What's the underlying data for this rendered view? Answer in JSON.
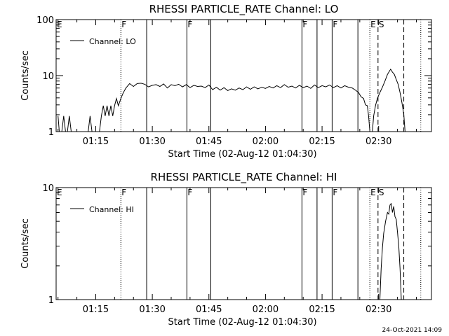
{
  "footer": {
    "date_stamp": "24-Oct-2021 14:09"
  },
  "chart_data": [
    {
      "type": "line",
      "title": "RHESSI PARTICLE_RATE Channel: LO",
      "xlabel": "Start Time (02-Aug-12 01:04:30)",
      "ylabel": "Counts/sec",
      "y_scale": "log",
      "ylim": [
        1,
        100
      ],
      "y_ticks": [
        "1",
        "10",
        "100"
      ],
      "xlim": [
        "01:04:30",
        "02:44:00"
      ],
      "x_ticks": [
        "01:15",
        "01:30",
        "01:45",
        "02:00",
        "02:15",
        "02:30"
      ],
      "grid": false,
      "legend": {
        "placement": "top-left",
        "entries": [
          "Channel: LO"
        ]
      },
      "markers": [
        {
          "label": "E",
          "time": "01:04:30",
          "style": "none"
        },
        {
          "label": "F",
          "time": "01:21:40",
          "style": "dotted"
        },
        {
          "label": "",
          "time": "01:28:30",
          "style": "solid"
        },
        {
          "label": "F",
          "time": "01:39:10",
          "style": "solid"
        },
        {
          "label": "",
          "time": "01:45:30",
          "style": "solid"
        },
        {
          "label": "F",
          "time": "02:09:40",
          "style": "solid"
        },
        {
          "label": "",
          "time": "02:13:40",
          "style": "solid"
        },
        {
          "label": "F",
          "time": "02:17:40",
          "style": "solid"
        },
        {
          "label": "",
          "time": "02:24:30",
          "style": "solid"
        },
        {
          "label": "E",
          "time": "02:27:40",
          "style": "dotted"
        },
        {
          "label": "S",
          "time": "02:29:50",
          "style": "dashed"
        },
        {
          "label": "",
          "time": "02:36:40",
          "style": "dashed"
        },
        {
          "label": "",
          "time": "02:41:10",
          "style": "dotted"
        }
      ],
      "series": [
        {
          "name": "Channel: LO",
          "points": [
            [
              "01:05:00",
              1.9
            ],
            [
              "01:05:20",
              1.0
            ],
            [
              "01:06:00",
              1.0
            ],
            [
              "01:06:30",
              1.9
            ],
            [
              "01:07:00",
              1.0
            ],
            [
              "01:07:30",
              1.0
            ],
            [
              "01:08:00",
              1.9
            ],
            [
              "01:08:30",
              1.0
            ],
            [
              "01:13:00",
              1.0
            ],
            [
              "01:13:30",
              1.9
            ],
            [
              "01:14:00",
              1.0
            ],
            [
              "01:16:00",
              1.0
            ],
            [
              "01:16:30",
              1.9
            ],
            [
              "01:17:00",
              2.9
            ],
            [
              "01:17:30",
              1.9
            ],
            [
              "01:18:00",
              2.9
            ],
            [
              "01:18:30",
              1.9
            ],
            [
              "01:19:00",
              2.9
            ],
            [
              "01:19:30",
              1.9
            ],
            [
              "01:20:00",
              2.9
            ],
            [
              "01:20:30",
              3.9
            ],
            [
              "01:21:00",
              2.9
            ],
            [
              "01:21:40",
              3.9
            ],
            [
              "01:22:20",
              5.0
            ],
            [
              "01:23:00",
              6.0
            ],
            [
              "01:24:00",
              7.2
            ],
            [
              "01:25:00",
              6.4
            ],
            [
              "01:26:00",
              7.2
            ],
            [
              "01:27:00",
              7.3
            ],
            [
              "01:28:00",
              7.0
            ],
            [
              "01:29:00",
              6.3
            ],
            [
              "01:30:00",
              6.7
            ],
            [
              "01:31:00",
              6.9
            ],
            [
              "01:32:00",
              6.4
            ],
            [
              "01:33:00",
              7.1
            ],
            [
              "01:34:00",
              6.0
            ],
            [
              "01:35:00",
              6.9
            ],
            [
              "01:36:00",
              6.6
            ],
            [
              "01:37:00",
              7.0
            ],
            [
              "01:38:00",
              6.3
            ],
            [
              "01:39:00",
              6.9
            ],
            [
              "01:40:00",
              6.1
            ],
            [
              "01:41:00",
              6.7
            ],
            [
              "01:42:00",
              6.4
            ],
            [
              "01:43:00",
              6.5
            ],
            [
              "01:44:00",
              6.1
            ],
            [
              "01:45:00",
              6.8
            ],
            [
              "01:46:00",
              5.6
            ],
            [
              "01:47:00",
              6.2
            ],
            [
              "01:48:00",
              5.5
            ],
            [
              "01:49:00",
              6.1
            ],
            [
              "01:50:00",
              5.4
            ],
            [
              "01:51:00",
              5.8
            ],
            [
              "01:52:00",
              5.5
            ],
            [
              "01:53:00",
              6.0
            ],
            [
              "01:54:00",
              5.6
            ],
            [
              "01:55:00",
              6.3
            ],
            [
              "01:56:00",
              5.7
            ],
            [
              "01:57:00",
              6.3
            ],
            [
              "01:58:00",
              5.8
            ],
            [
              "01:59:00",
              6.2
            ],
            [
              "02:00:00",
              5.9
            ],
            [
              "02:01:00",
              6.4
            ],
            [
              "02:02:00",
              6.0
            ],
            [
              "02:03:00",
              6.6
            ],
            [
              "02:04:00",
              6.1
            ],
            [
              "02:05:00",
              6.9
            ],
            [
              "02:06:00",
              6.2
            ],
            [
              "02:07:00",
              6.5
            ],
            [
              "02:08:00",
              6.0
            ],
            [
              "02:09:00",
              6.7
            ],
            [
              "02:10:00",
              6.1
            ],
            [
              "02:11:00",
              6.5
            ],
            [
              "02:12:00",
              5.9
            ],
            [
              "02:13:00",
              6.8
            ],
            [
              "02:14:00",
              6.1
            ],
            [
              "02:15:00",
              6.6
            ],
            [
              "02:16:00",
              6.3
            ],
            [
              "02:17:00",
              6.8
            ],
            [
              "02:18:00",
              6.1
            ],
            [
              "02:19:00",
              6.6
            ],
            [
              "02:20:00",
              6.0
            ],
            [
              "02:21:00",
              6.6
            ],
            [
              "02:22:00",
              6.2
            ],
            [
              "02:23:00",
              6.0
            ],
            [
              "02:24:00",
              5.4
            ],
            [
              "02:24:40",
              5.0
            ],
            [
              "02:25:20",
              4.2
            ],
            [
              "02:26:00",
              3.9
            ],
            [
              "02:26:30",
              3.0
            ],
            [
              "02:27:00",
              2.9
            ],
            [
              "02:27:20",
              1.9
            ],
            [
              "02:27:40",
              1.0
            ],
            [
              "02:28:20",
              1.0
            ],
            [
              "02:28:40",
              1.9
            ],
            [
              "02:29:10",
              2.9
            ],
            [
              "02:29:40",
              3.9
            ],
            [
              "02:30:20",
              5.0
            ],
            [
              "02:31:00",
              6.2
            ],
            [
              "02:31:40",
              8.0
            ],
            [
              "02:32:20",
              10.5
            ],
            [
              "02:32:50",
              12.0
            ],
            [
              "02:33:10",
              13.0
            ],
            [
              "02:33:40",
              11.5
            ],
            [
              "02:34:10",
              10.5
            ],
            [
              "02:34:40",
              8.5
            ],
            [
              "02:35:10",
              7.0
            ],
            [
              "02:35:40",
              5.0
            ],
            [
              "02:36:10",
              3.3
            ],
            [
              "02:36:40",
              2.0
            ],
            [
              "02:37:00",
              1.0
            ]
          ]
        }
      ]
    },
    {
      "type": "line",
      "title": "RHESSI PARTICLE_RATE Channel: HI",
      "xlabel": "Start Time (02-Aug-12 01:04:30)",
      "ylabel": "Counts/sec",
      "y_scale": "log",
      "ylim": [
        1,
        10
      ],
      "y_ticks": [
        "1",
        "10"
      ],
      "xlim": [
        "01:04:30",
        "02:44:00"
      ],
      "x_ticks": [
        "01:15",
        "01:30",
        "01:45",
        "02:00",
        "02:15",
        "02:30"
      ],
      "grid": false,
      "legend": {
        "placement": "top-left",
        "entries": [
          "Channel: HI"
        ]
      },
      "markers": [
        {
          "label": "E",
          "time": "01:04:30",
          "style": "none"
        },
        {
          "label": "F",
          "time": "01:21:40",
          "style": "dotted"
        },
        {
          "label": "",
          "time": "01:28:30",
          "style": "solid"
        },
        {
          "label": "F",
          "time": "01:39:10",
          "style": "solid"
        },
        {
          "label": "",
          "time": "01:45:30",
          "style": "solid"
        },
        {
          "label": "F",
          "time": "02:09:40",
          "style": "solid"
        },
        {
          "label": "",
          "time": "02:13:40",
          "style": "solid"
        },
        {
          "label": "F",
          "time": "02:17:40",
          "style": "solid"
        },
        {
          "label": "",
          "time": "02:24:30",
          "style": "solid"
        },
        {
          "label": "E",
          "time": "02:27:40",
          "style": "dotted"
        },
        {
          "label": "S",
          "time": "02:29:50",
          "style": "dashed"
        },
        {
          "label": "",
          "time": "02:36:40",
          "style": "dashed"
        },
        {
          "label": "",
          "time": "02:41:10",
          "style": "dotted"
        }
      ],
      "series": [
        {
          "name": "Channel: HI",
          "points": [
            [
              "02:30:20",
              1.0
            ],
            [
              "02:30:40",
              1.9
            ],
            [
              "02:31:00",
              2.9
            ],
            [
              "02:31:20",
              3.9
            ],
            [
              "02:31:50",
              5.0
            ],
            [
              "02:32:20",
              6.0
            ],
            [
              "02:32:40",
              5.8
            ],
            [
              "02:33:00",
              7.0
            ],
            [
              "02:33:20",
              7.2
            ],
            [
              "02:33:40",
              6.0
            ],
            [
              "02:34:00",
              6.8
            ],
            [
              "02:34:20",
              5.5
            ],
            [
              "02:34:40",
              5.2
            ],
            [
              "02:35:00",
              4.0
            ],
            [
              "02:35:20",
              3.0
            ],
            [
              "02:35:40",
              1.9
            ],
            [
              "02:36:00",
              1.0
            ]
          ]
        }
      ]
    }
  ]
}
